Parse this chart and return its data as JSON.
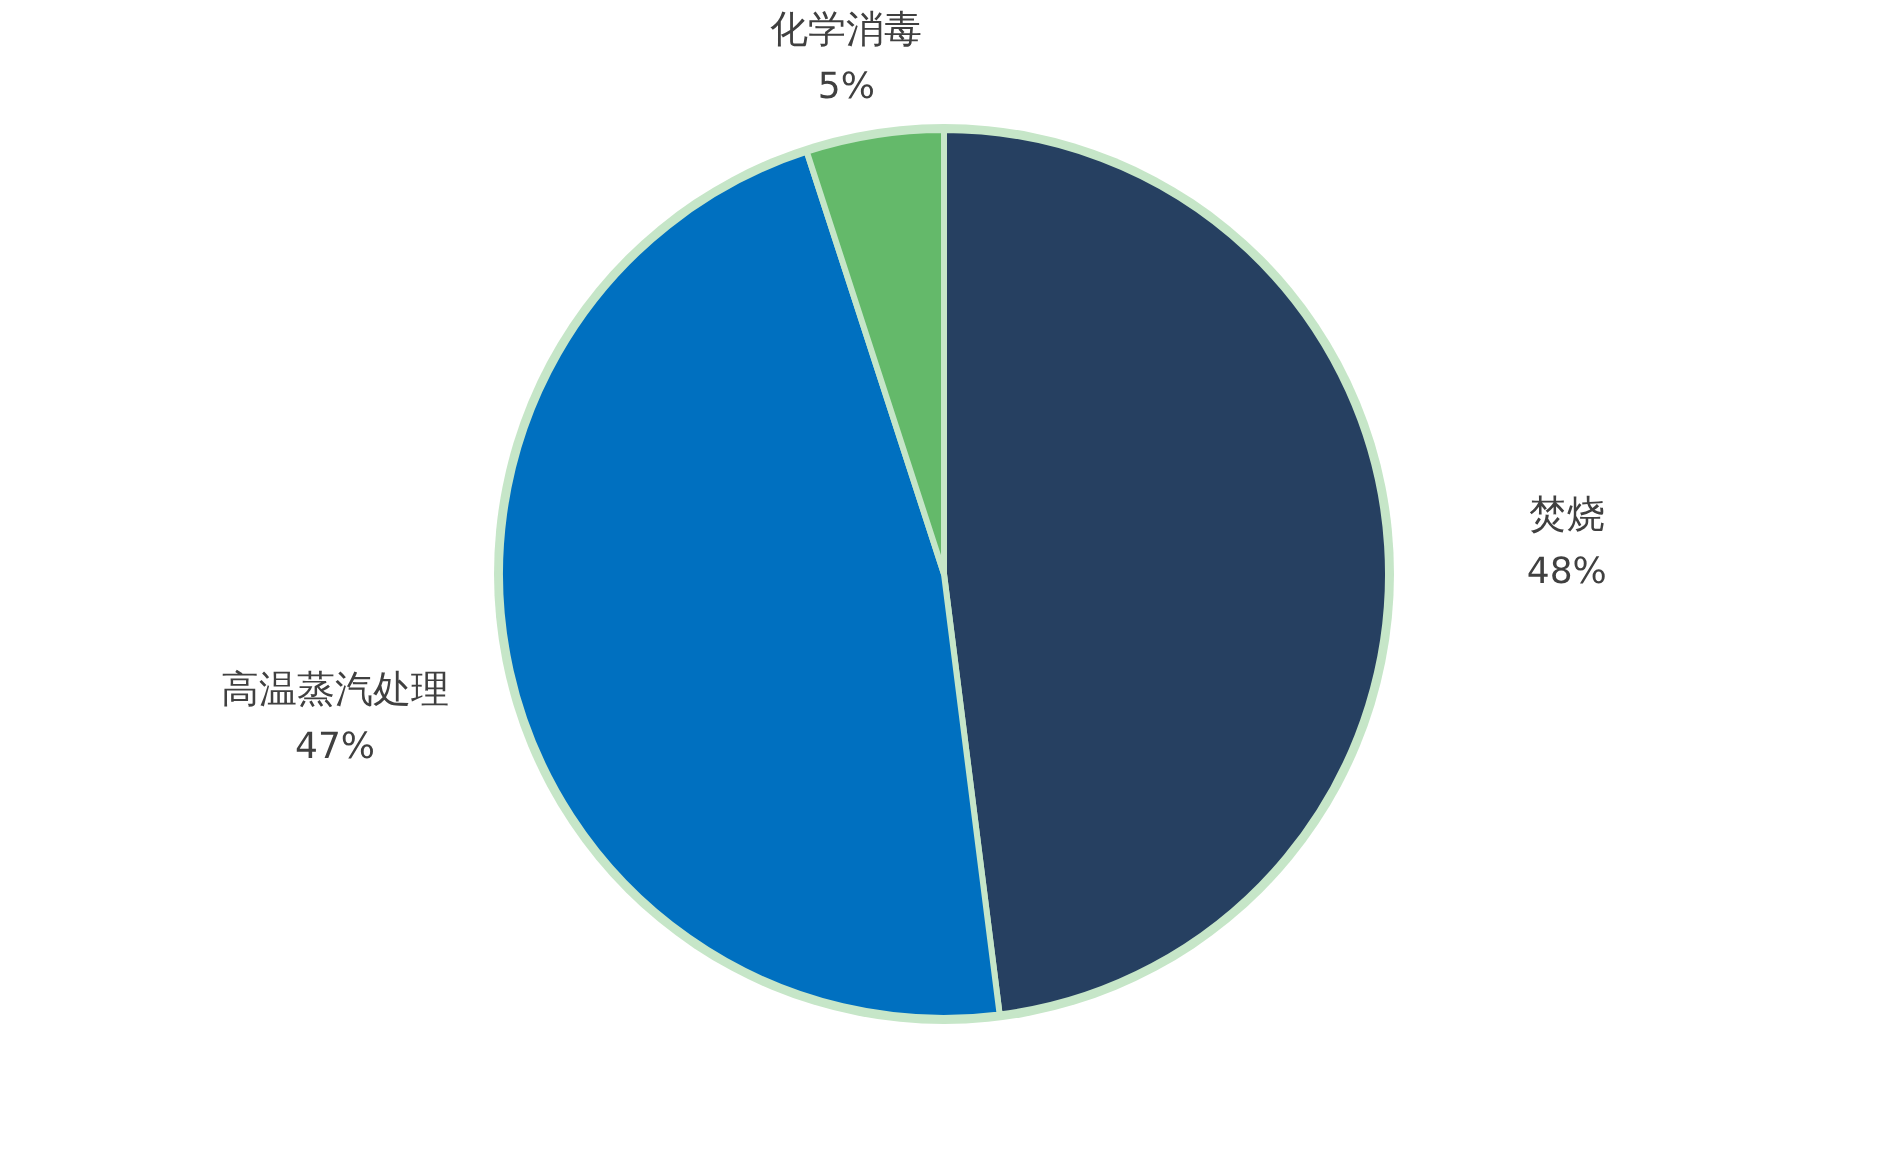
{
  "chart_data": {
    "type": "pie",
    "categories": [
      "焚烧",
      "高温蒸汽处理",
      "化学消毒"
    ],
    "values": [
      48,
      47,
      5
    ],
    "colors": [
      "#264061",
      "#0070c0",
      "#64b96a"
    ],
    "value_labels": [
      "48%",
      "47%",
      "5%"
    ],
    "legend": false
  }
}
